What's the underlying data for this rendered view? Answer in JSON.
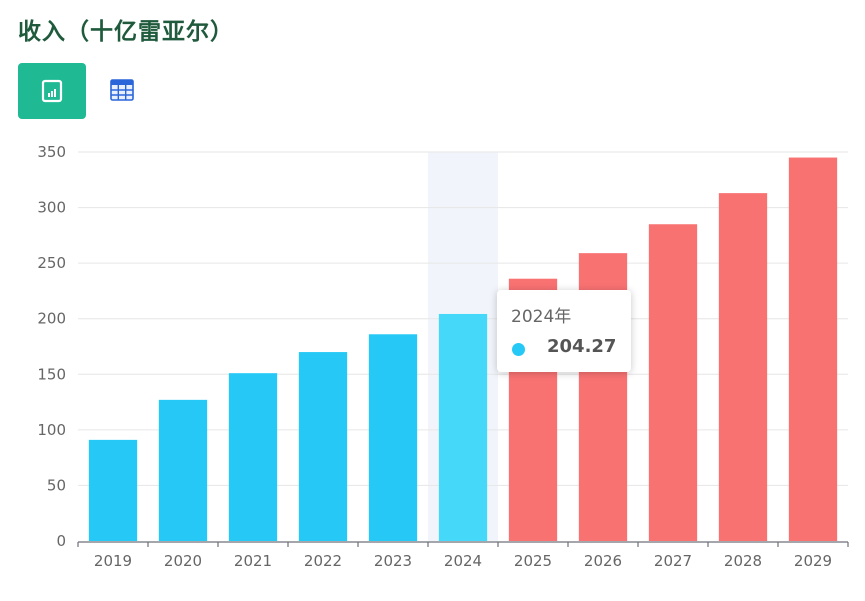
{
  "header": {
    "title": "收入（十亿雷亚尔）"
  },
  "toolbar": {
    "chart_view_icon": "bar-chart-icon",
    "table_view_icon": "table-icon",
    "active_view": "chart"
  },
  "colors": {
    "actual": "#26c9f5",
    "highlight": "#45d8f8",
    "forecast": "#f97272",
    "accent": "#1fba94",
    "title": "#1f5a3c"
  },
  "tooltip": {
    "title": "2024年",
    "value": "204.27",
    "marker_color": "#26c9f5"
  },
  "chart_data": {
    "type": "bar",
    "title": "收入（十亿雷亚尔）",
    "xlabel": "",
    "ylabel": "",
    "categories": [
      "2019",
      "2020",
      "2021",
      "2022",
      "2023",
      "2024",
      "2025",
      "2026",
      "2027",
      "2028",
      "2029"
    ],
    "values": [
      91,
      127,
      151,
      170,
      186,
      204.27,
      236,
      259,
      285,
      313,
      345
    ],
    "series_type": [
      "actual",
      "actual",
      "actual",
      "actual",
      "actual",
      "actual",
      "forecast",
      "forecast",
      "forecast",
      "forecast",
      "forecast"
    ],
    "highlighted_category": "2024",
    "ylim": [
      0,
      350
    ],
    "yticks": [
      0,
      50,
      100,
      150,
      200,
      250,
      300,
      350
    ],
    "grid": true,
    "legend": "none"
  }
}
